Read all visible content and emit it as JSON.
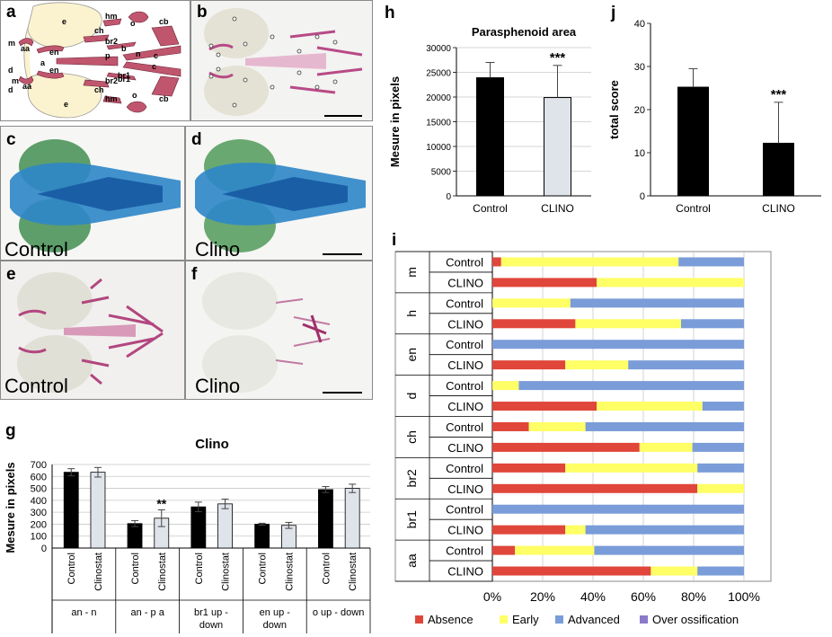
{
  "panel_labels": {
    "a": "a",
    "b": "b",
    "c": "c",
    "d": "d",
    "e": "e",
    "f": "f",
    "g": "g",
    "h": "h",
    "i": "i",
    "j": "j"
  },
  "schematic_labels": [
    "m",
    "d",
    "aa",
    "e",
    "en",
    "ch",
    "a",
    "hm",
    "br2",
    "b",
    "br1",
    "cb",
    "o",
    "p",
    "n",
    "c",
    "m",
    "d",
    "aa",
    "en",
    "ch",
    "br2",
    "br1",
    "cb",
    "hm",
    "o",
    "e",
    "c"
  ],
  "photo_captions": {
    "c": "Control",
    "d": "Clino",
    "e": "Control",
    "f": "Clino"
  },
  "colors": {
    "absence": "#e0463a",
    "early": "#ffff66",
    "advanced": "#7a9cd8",
    "over": "#8a7ac8",
    "black_bar": "#000000",
    "light_bar": "#dfe3ea",
    "alcian": "#2d86c9",
    "alizarin": "#b2467f"
  },
  "chart_data": [
    {
      "id": "g",
      "type": "bar",
      "title": "Clino",
      "ylabel": "Mesure in pixels",
      "ylim": [
        0,
        700
      ],
      "yticks": [
        0,
        100,
        200,
        300,
        400,
        500,
        600,
        700
      ],
      "groups": [
        "an - n",
        "an - p a",
        "br1 up - down",
        "en up - down",
        "o up - down"
      ],
      "group_lines": [
        [
          "an - n"
        ],
        [
          "an - p a"
        ],
        [
          "br1 up -",
          "down"
        ],
        [
          "en up -",
          "down"
        ],
        [
          "o up - down"
        ]
      ],
      "bar_labels": [
        "Control",
        "Clinostat"
      ],
      "control": [
        635,
        205,
        345,
        200,
        490
      ],
      "control_err": [
        30,
        25,
        40,
        8,
        25
      ],
      "clinostat": [
        635,
        250,
        370,
        190,
        500
      ],
      "clinostat_err": [
        40,
        70,
        40,
        25,
        35
      ],
      "annotations": [
        {
          "group": "an - p a",
          "text": "**"
        }
      ],
      "grid": true
    },
    {
      "id": "h",
      "type": "bar",
      "title": "Parasphenoid area",
      "ylabel": "Mesure in pixels",
      "categories": [
        "Control",
        "CLINO"
      ],
      "values": [
        23900,
        19900
      ],
      "errors": [
        3100,
        6500
      ],
      "ylim": [
        0,
        30000
      ],
      "yticks": [
        0,
        5000,
        10000,
        15000,
        20000,
        25000,
        30000
      ],
      "annotations": [
        {
          "category": "CLINO",
          "text": "***"
        }
      ],
      "grid": true
    },
    {
      "id": "j",
      "type": "bar",
      "title": "",
      "ylabel": "total score",
      "categories": [
        "Control",
        "CLINO"
      ],
      "values": [
        25.2,
        12.2
      ],
      "errors": [
        4.3,
        9.5
      ],
      "ylim": [
        0,
        40
      ],
      "yticks": [
        0,
        10,
        20,
        30,
        40
      ],
      "annotations": [
        {
          "category": "CLINO",
          "text": "***"
        }
      ],
      "grid": false
    },
    {
      "id": "i",
      "type": "bar",
      "orientation": "horizontal",
      "stacked": true,
      "percent": true,
      "xticks": [
        "0%",
        "20%",
        "40%",
        "60%",
        "80%",
        "100%"
      ],
      "series_names": [
        "Absence",
        "Early",
        "Advanced",
        "Over ossification"
      ],
      "groups": [
        {
          "name": "m",
          "rows": [
            {
              "label": "Control",
              "absence": 3.5,
              "early": 70.5,
              "advanced": 26,
              "over": 0
            },
            {
              "label": "CLINO",
              "absence": 41.5,
              "early": 58.5,
              "advanced": 0,
              "over": 0
            }
          ]
        },
        {
          "name": "h",
          "rows": [
            {
              "label": "Control",
              "absence": 0,
              "early": 31,
              "advanced": 69,
              "over": 0
            },
            {
              "label": "CLINO",
              "absence": 33,
              "early": 42,
              "advanced": 25,
              "over": 0
            }
          ]
        },
        {
          "name": "en",
          "rows": [
            {
              "label": "Control",
              "absence": 0,
              "early": 0,
              "advanced": 100,
              "over": 0
            },
            {
              "label": "CLINO",
              "absence": 29,
              "early": 25,
              "advanced": 46,
              "over": 0
            }
          ]
        },
        {
          "name": "d",
          "rows": [
            {
              "label": "Control",
              "absence": 0,
              "early": 10.5,
              "advanced": 89.5,
              "over": 0
            },
            {
              "label": "CLINO",
              "absence": 41.5,
              "early": 42,
              "advanced": 16.5,
              "over": 0
            }
          ]
        },
        {
          "name": "ch",
          "rows": [
            {
              "label": "Control",
              "absence": 14.5,
              "early": 22.5,
              "advanced": 63,
              "over": 0
            },
            {
              "label": "CLINO",
              "absence": 58.5,
              "early": 21,
              "advanced": 20.5,
              "over": 0
            }
          ]
        },
        {
          "name": "br2",
          "rows": [
            {
              "label": "Control",
              "absence": 29,
              "early": 52.5,
              "advanced": 18.5,
              "over": 0
            },
            {
              "label": "CLINO",
              "absence": 81.5,
              "early": 18.5,
              "advanced": 0,
              "over": 0
            }
          ]
        },
        {
          "name": "br1",
          "rows": [
            {
              "label": "Control",
              "absence": 0,
              "early": 0,
              "advanced": 100,
              "over": 0
            },
            {
              "label": "CLINO",
              "absence": 29,
              "early": 8,
              "advanced": 63,
              "over": 0
            }
          ]
        },
        {
          "name": "aa",
          "rows": [
            {
              "label": "Control",
              "absence": 9,
              "early": 31.5,
              "advanced": 59.5,
              "over": 0
            },
            {
              "label": "CLINO",
              "absence": 63,
              "early": 18.5,
              "advanced": 18.5,
              "over": 0
            }
          ]
        }
      ],
      "grid": true,
      "legend": "bottom"
    }
  ]
}
